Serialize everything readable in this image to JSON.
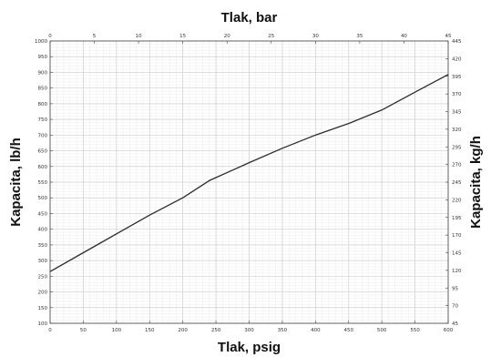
{
  "chart_data": {
    "type": "line",
    "xlabel_bottom": "Tlak, psig",
    "xlabel_top": "Tlak, bar",
    "ylabel_left": "Kapacita, lb/h",
    "ylabel_right": "Kapacita, kg/h",
    "x_bottom_range": [
      0,
      600
    ],
    "x_bottom_ticks": [
      "0",
      "50",
      "100",
      "150",
      "200",
      "250",
      "300",
      "350",
      "400",
      "450",
      "500",
      "550",
      "600"
    ],
    "x_top_range": [
      0,
      45
    ],
    "x_top_ticks": [
      "0",
      "5",
      "10",
      "15",
      "20",
      "25",
      "30",
      "35",
      "40",
      "45"
    ],
    "y_left_range": [
      100,
      1000
    ],
    "y_left_ticks": [
      "100",
      "150",
      "200",
      "250",
      "300",
      "350",
      "400",
      "450",
      "500",
      "550",
      "600",
      "650",
      "700",
      "750",
      "800",
      "850",
      "900",
      "950",
      "1000"
    ],
    "y_right_ticks": [
      "45",
      "70",
      "95",
      "120",
      "145",
      "170",
      "195",
      "220",
      "245",
      "270",
      "295",
      "320",
      "345",
      "370",
      "395",
      "420",
      "445"
    ],
    "grid": true,
    "series": [
      {
        "x": [
          0,
          50,
          100,
          150,
          200,
          240,
          300,
          350,
          400,
          450,
          500,
          550,
          600
        ],
        "y": [
          265,
          325,
          385,
          445,
          500,
          555,
          612,
          658,
          700,
          737,
          780,
          837,
          893
        ]
      }
    ],
    "line_color": "#2b2b2b"
  }
}
